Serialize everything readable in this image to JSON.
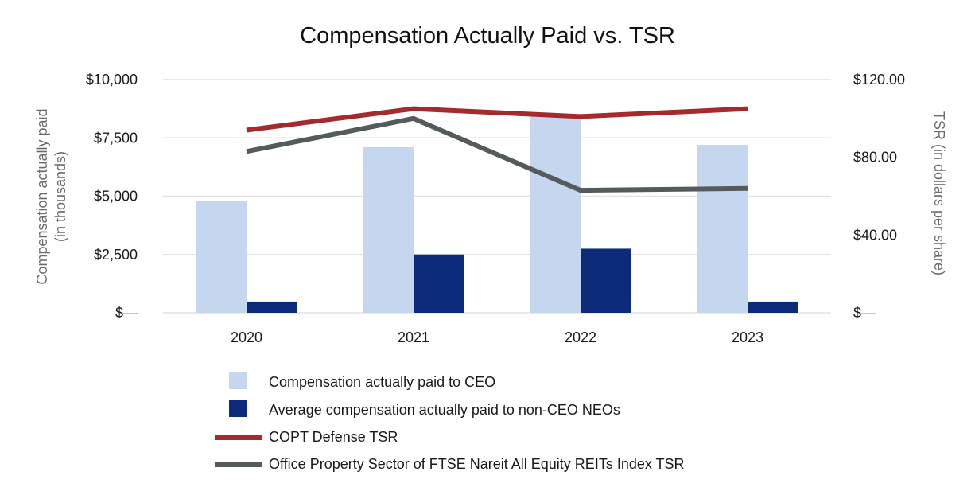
{
  "chart_data": {
    "type": "bar",
    "title": "Compensation Actually Paid vs. TSR",
    "categories": [
      "2020",
      "2021",
      "2022",
      "2023"
    ],
    "y_left": {
      "label_line1": "Compensation actually paid",
      "label_line2": "(in thousands)",
      "range": [
        0,
        10000
      ],
      "ticks": [
        0,
        2500,
        5000,
        7500,
        10000
      ],
      "tick_labels": [
        "$—",
        "$2,500",
        "$5,000",
        "$7,500",
        "$10,000"
      ]
    },
    "y_right": {
      "label": "TSR (in dollars per share)",
      "range": [
        0,
        120
      ],
      "ticks": [
        0,
        40,
        80,
        120
      ],
      "tick_labels": [
        "$—",
        "$40.00",
        "$80.00",
        "$120.00"
      ]
    },
    "bar_series": [
      {
        "name": "Compensation actually paid to CEO",
        "color": "#c5d7ee",
        "values": [
          4800,
          7100,
          8500,
          7200
        ]
      },
      {
        "name": "Average compensation actually paid to non-CEO NEOs",
        "color": "#0b2a7a",
        "values": [
          480,
          2500,
          2750,
          480
        ]
      }
    ],
    "line_series": [
      {
        "name": "COPT Defense TSR",
        "color": "#a52a2e",
        "values": [
          94,
          105,
          101,
          105
        ]
      },
      {
        "name": "Office Property Sector of FTSE Nareit All Equity REITs Index TSR",
        "color": "#555a5c",
        "values": [
          83,
          100,
          63,
          64
        ]
      }
    ],
    "grid": true,
    "legend_position": "bottom"
  }
}
